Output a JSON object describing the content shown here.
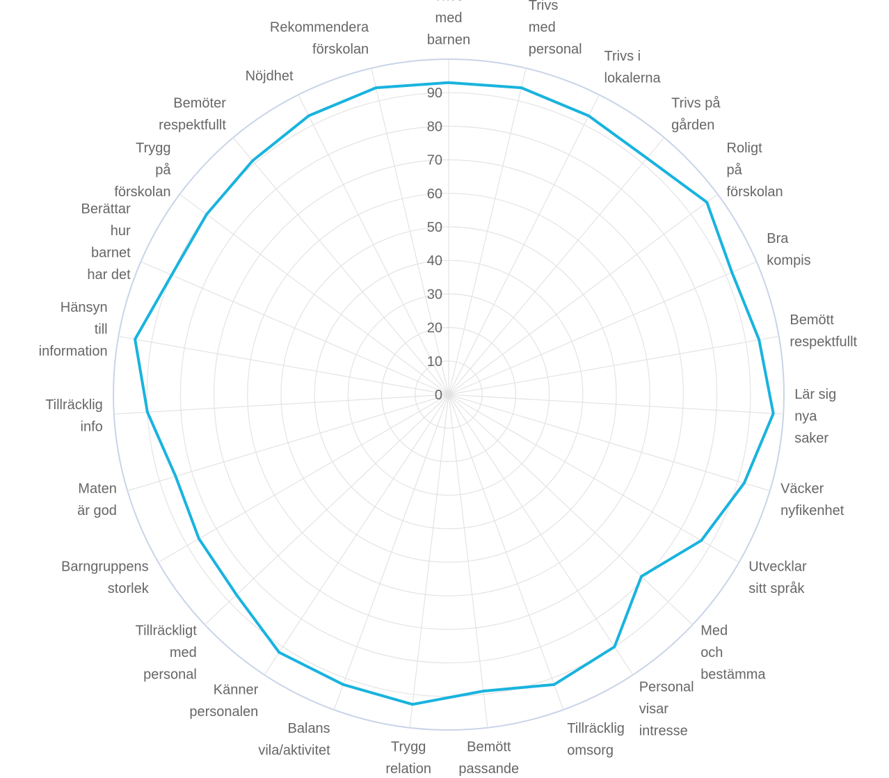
{
  "chart_data": {
    "type": "radar",
    "title": "",
    "categories": [
      "Trivs med barnen",
      "Trivs med personal",
      "Trivs i lokalerna",
      "Trivs på gården",
      "Roligt på förskolan",
      "Bra kompis",
      "Bemött respektfullt",
      "Lär sig nya saker",
      "Väcker nyfikenhet",
      "Utvecklar sitt språk",
      "Med och bestämma",
      "Personal visar intresse",
      "Tillräcklig omsorg",
      "Bemött passande",
      "Trygg relation",
      "Balans vila/aktivitet",
      "Känner personalen",
      "Tillräckligt med personal",
      "Barngruppens storlek",
      "Maten är god",
      "Tillräcklig info",
      "Hänsyn till information",
      "Berättar hur barnet har det",
      "Trygg på förskolan",
      "Bemöter respektfullt",
      "Nöjdhet",
      "Rekommendera förskolan"
    ],
    "label_lines": [
      [
        "Trivs",
        "med",
        "barnen"
      ],
      [
        "Trivs",
        "med",
        "personal"
      ],
      [
        "Trivs i",
        "lokalerna"
      ],
      [
        "Trivs på",
        "gården"
      ],
      [
        "Roligt",
        "på",
        "förskolan"
      ],
      [
        "Bra",
        "kompis"
      ],
      [
        "Bemött",
        "respektfullt"
      ],
      [
        "Lär sig",
        "nya",
        "saker"
      ],
      [
        "Väcker",
        "nyfikenhet"
      ],
      [
        "Utvecklar",
        "sitt språk"
      ],
      [
        "Med",
        "och",
        "bestämma"
      ],
      [
        "Personal",
        "visar",
        "intresse"
      ],
      [
        "Tillräcklig",
        "omsorg"
      ],
      [
        "Bemött",
        "passande"
      ],
      [
        "Trygg",
        "relation"
      ],
      [
        "Balans",
        "vila/aktivitet"
      ],
      [
        "Känner",
        "personalen"
      ],
      [
        "Tillräckligt",
        "med",
        "personal"
      ],
      [
        "Barngruppens",
        "storlek"
      ],
      [
        "Maten",
        "är god"
      ],
      [
        "Tillräcklig",
        "info"
      ],
      [
        "Hänsyn",
        "till",
        "information"
      ],
      [
        "Berättar",
        "hur",
        "barnet",
        "har det"
      ],
      [
        "Trygg",
        "på",
        "förskolan"
      ],
      [
        "Bemöter",
        "respektfullt"
      ],
      [
        "Nöjdhet"
      ],
      [
        "Rekommendera",
        "förskolan"
      ]
    ],
    "series": [
      {
        "values": [
          93,
          94,
          93,
          92,
          96,
          92,
          94,
          97,
          92,
          87,
          79,
          90,
          92,
          89,
          93,
          92,
          92,
          87,
          86,
          85,
          90,
          95,
          90,
          90,
          91,
          93,
          94
        ]
      }
    ],
    "rlim": [
      0,
      100
    ],
    "ticks": [
      "0",
      "10",
      "20",
      "30",
      "40",
      "50",
      "60",
      "70",
      "80",
      "90"
    ],
    "grid": true,
    "legend": "none",
    "colors": {
      "series": "#19b3de",
      "grid": "#e3e3e3",
      "outer_ring": "#c9d4e8",
      "labels": "#666666"
    }
  }
}
